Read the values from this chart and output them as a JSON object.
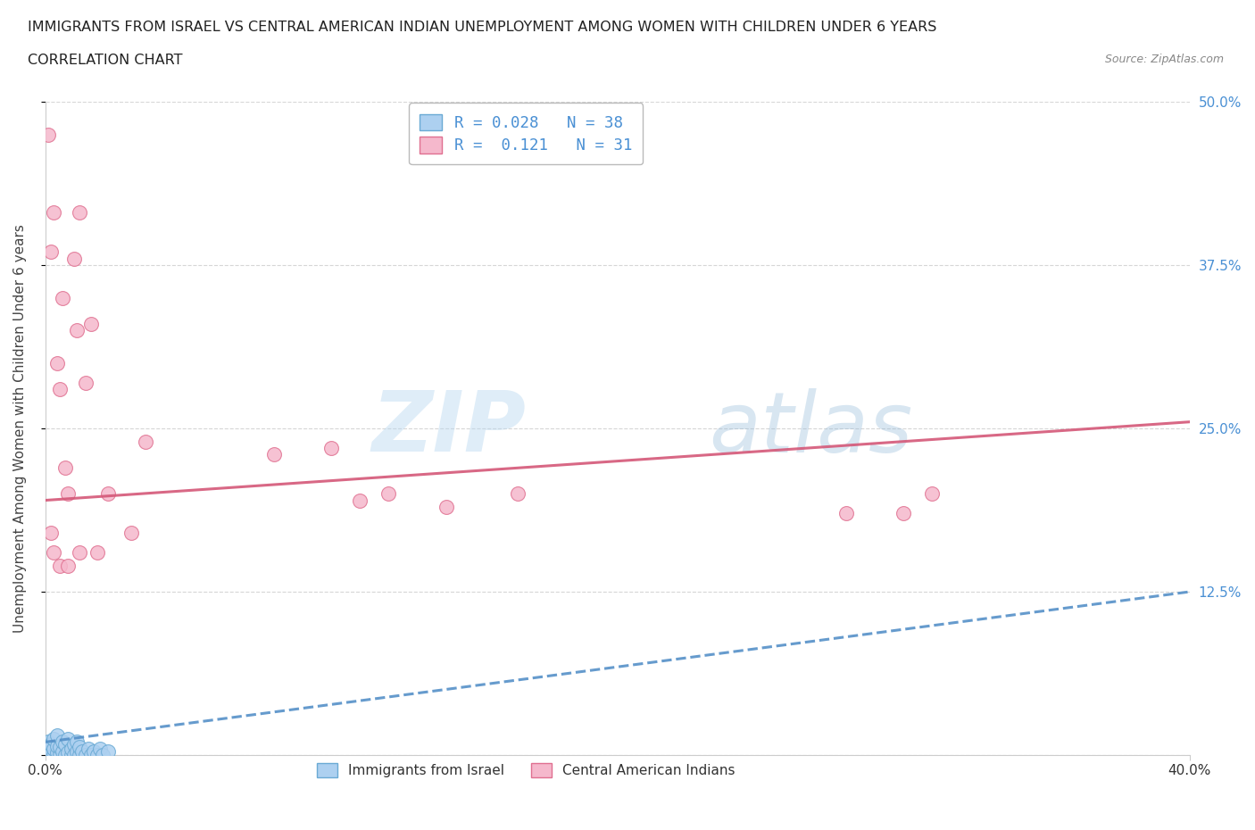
{
  "title_line1": "IMMIGRANTS FROM ISRAEL VS CENTRAL AMERICAN INDIAN UNEMPLOYMENT AMONG WOMEN WITH CHILDREN UNDER 6 YEARS",
  "title_line2": "CORRELATION CHART",
  "source": "Source: ZipAtlas.com",
  "ylabel_label": "Unemployment Among Women with Children Under 6 years",
  "legend_label1": "Immigrants from Israel",
  "legend_label2": "Central American Indians",
  "R1": "0.028",
  "N1": "38",
  "R2": "0.121",
  "N2": "31",
  "blue_color": "#add0f0",
  "blue_edge": "#6aaad4",
  "pink_color": "#f5b8cc",
  "pink_edge": "#e07090",
  "blue_line_color": "#5590c8",
  "pink_line_color": "#d45878",
  "xlim": [
    0.0,
    0.4
  ],
  "ylim": [
    0.0,
    0.5
  ],
  "background_color": "#ffffff",
  "grid_color": "#cccccc",
  "blue_x": [
    0.0,
    0.001,
    0.001,
    0.001,
    0.002,
    0.002,
    0.002,
    0.003,
    0.003,
    0.003,
    0.004,
    0.004,
    0.004,
    0.005,
    0.005,
    0.006,
    0.006,
    0.007,
    0.007,
    0.008,
    0.008,
    0.009,
    0.009,
    0.01,
    0.01,
    0.011,
    0.011,
    0.012,
    0.012,
    0.013,
    0.014,
    0.015,
    0.016,
    0.017,
    0.018,
    0.019,
    0.02,
    0.022
  ],
  "blue_y": [
    0.0,
    0.0,
    0.005,
    0.01,
    0.0,
    0.003,
    0.008,
    0.0,
    0.005,
    0.012,
    0.002,
    0.007,
    0.015,
    0.0,
    0.006,
    0.003,
    0.01,
    0.0,
    0.008,
    0.002,
    0.012,
    0.0,
    0.005,
    0.0,
    0.008,
    0.003,
    0.01,
    0.0,
    0.006,
    0.003,
    0.0,
    0.005,
    0.0,
    0.003,
    0.0,
    0.005,
    0.0,
    0.003
  ],
  "pink_x": [
    0.001,
    0.002,
    0.003,
    0.004,
    0.005,
    0.006,
    0.007,
    0.008,
    0.01,
    0.011,
    0.012,
    0.014,
    0.016,
    0.018,
    0.022,
    0.03,
    0.035,
    0.08,
    0.1,
    0.11,
    0.12,
    0.14,
    0.165,
    0.28,
    0.3,
    0.31,
    0.002,
    0.003,
    0.005,
    0.008,
    0.012
  ],
  "pink_y": [
    0.475,
    0.385,
    0.415,
    0.3,
    0.28,
    0.35,
    0.22,
    0.2,
    0.38,
    0.325,
    0.415,
    0.285,
    0.33,
    0.155,
    0.2,
    0.17,
    0.24,
    0.23,
    0.235,
    0.195,
    0.2,
    0.19,
    0.2,
    0.185,
    0.185,
    0.2,
    0.17,
    0.155,
    0.145,
    0.145,
    0.155
  ],
  "blue_line_x": [
    0.0,
    0.4
  ],
  "blue_line_y": [
    0.01,
    0.125
  ],
  "pink_line_x": [
    0.0,
    0.4
  ],
  "pink_line_y": [
    0.195,
    0.255
  ]
}
